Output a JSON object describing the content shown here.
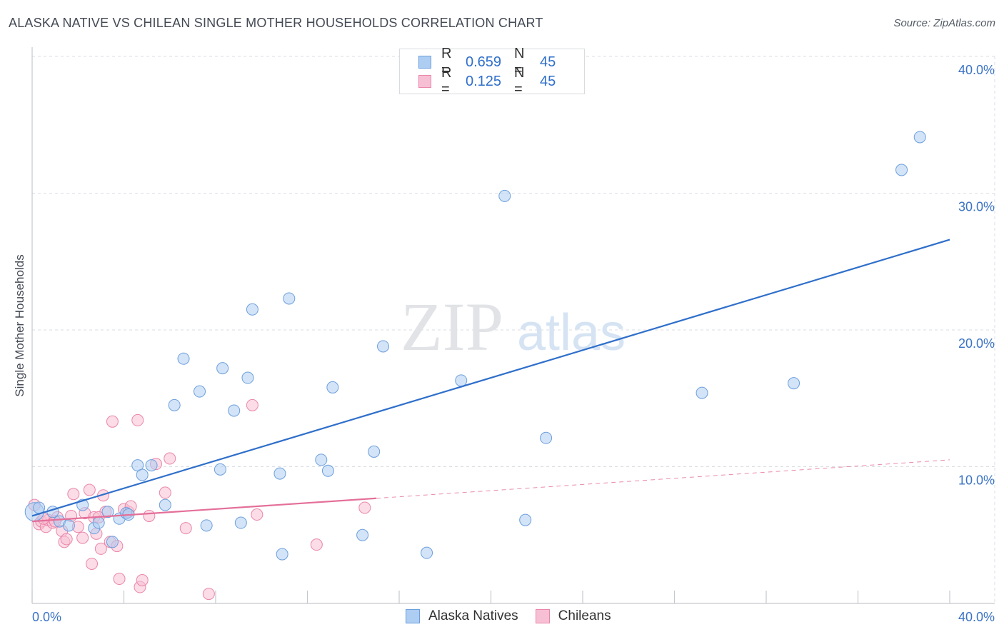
{
  "title": "ALASKA NATIVE VS CHILEAN SINGLE MOTHER HOUSEHOLDS CORRELATION CHART",
  "source": "Source: ZipAtlas.com",
  "watermark": {
    "zip": "ZIP",
    "atlas": "atlas"
  },
  "legend_top": [
    {
      "r_label": "R =",
      "r_value": "0.659",
      "n_label": "N =",
      "n_value": "45"
    },
    {
      "r_label": "R =",
      "r_value": "0.125",
      "n_label": "N =",
      "n_value": "45"
    }
  ],
  "legend_bottom": [
    "Alaska Natives",
    "Chileans"
  ],
  "colors": {
    "blue_fill": "#aecdf2",
    "blue_stroke": "#6c9fdc",
    "blue_line": "#2f6fca",
    "pink_fill": "#f7bfd3",
    "pink_stroke": "#ea86a9",
    "pink_line": "#e46f99",
    "tick_text": "#3b73c5",
    "grid": "#d9dde3"
  },
  "chart_data": {
    "type": "scatter",
    "title": "ALASKA NATIVE VS CHILEAN SINGLE MOTHER HOUSEHOLDS CORRELATION CHART",
    "xlabel": "",
    "ylabel": "Single Mother Households",
    "xlim": [
      0,
      40
    ],
    "ylim": [
      0,
      40
    ],
    "x_tick_labels": [
      "0.0%",
      "40.0%"
    ],
    "y_ticks": [
      10,
      20,
      30,
      40
    ],
    "y_tick_labels": [
      "10.0%",
      "20.0%",
      "30.0%",
      "40.0%"
    ],
    "series": [
      {
        "name": "Alaska Natives",
        "r": 0.659,
        "n": 45,
        "trend": {
          "x": [
            0,
            40
          ],
          "y": [
            6.4,
            26.6
          ],
          "solid_to": 40
        },
        "points": [
          [
            0.1,
            6.7
          ],
          [
            0.9,
            6.7
          ],
          [
            1.2,
            6.0
          ],
          [
            1.6,
            5.7
          ],
          [
            2.2,
            7.2
          ],
          [
            2.7,
            5.5
          ],
          [
            2.9,
            5.9
          ],
          [
            3.3,
            6.7
          ],
          [
            3.5,
            4.5
          ],
          [
            3.8,
            6.2
          ],
          [
            4.1,
            6.6
          ],
          [
            4.6,
            10.1
          ],
          [
            4.8,
            9.4
          ],
          [
            5.2,
            10.1
          ],
          [
            5.8,
            7.2
          ],
          [
            6.2,
            14.5
          ],
          [
            6.6,
            17.9
          ],
          [
            7.3,
            15.5
          ],
          [
            7.6,
            5.7
          ],
          [
            8.2,
            9.8
          ],
          [
            8.3,
            17.2
          ],
          [
            8.8,
            14.1
          ],
          [
            9.1,
            5.9
          ],
          [
            9.4,
            16.5
          ],
          [
            9.6,
            21.5
          ],
          [
            10.8,
            9.5
          ],
          [
            10.9,
            3.6
          ],
          [
            11.2,
            22.3
          ],
          [
            12.6,
            10.5
          ],
          [
            12.9,
            9.7
          ],
          [
            13.1,
            15.8
          ],
          [
            14.4,
            5.0
          ],
          [
            14.9,
            11.1
          ],
          [
            15.3,
            18.8
          ],
          [
            17.2,
            3.7
          ],
          [
            18.7,
            16.3
          ],
          [
            20.6,
            29.8
          ],
          [
            21.5,
            6.1
          ],
          [
            22.4,
            12.1
          ],
          [
            29.2,
            15.4
          ],
          [
            33.2,
            16.1
          ],
          [
            37.9,
            31.7
          ],
          [
            38.7,
            34.1
          ],
          [
            0.3,
            7.0
          ],
          [
            4.2,
            6.5
          ]
        ]
      },
      {
        "name": "Chileans",
        "r": 0.125,
        "n": 45,
        "trend": {
          "x": [
            0,
            40
          ],
          "y": [
            6.0,
            10.5
          ],
          "solid_to": 15.0
        },
        "points": [
          [
            0.1,
            7.2
          ],
          [
            0.3,
            5.8
          ],
          [
            0.4,
            6.0
          ],
          [
            0.6,
            5.6
          ],
          [
            0.7,
            6.1
          ],
          [
            0.9,
            5.9
          ],
          [
            1.1,
            6.3
          ],
          [
            1.3,
            5.3
          ],
          [
            1.4,
            4.5
          ],
          [
            1.5,
            4.7
          ],
          [
            1.7,
            6.4
          ],
          [
            1.8,
            8.0
          ],
          [
            2.0,
            5.6
          ],
          [
            2.2,
            4.8
          ],
          [
            2.3,
            6.6
          ],
          [
            2.5,
            8.3
          ],
          [
            2.6,
            2.9
          ],
          [
            2.7,
            6.3
          ],
          [
            2.8,
            5.1
          ],
          [
            3.0,
            4.0
          ],
          [
            3.1,
            7.9
          ],
          [
            3.2,
            6.7
          ],
          [
            3.4,
            4.5
          ],
          [
            3.5,
            13.3
          ],
          [
            3.7,
            4.2
          ],
          [
            3.8,
            1.8
          ],
          [
            4.0,
            6.9
          ],
          [
            4.2,
            6.7
          ],
          [
            4.3,
            7.1
          ],
          [
            4.6,
            13.4
          ],
          [
            4.7,
            1.2
          ],
          [
            4.8,
            1.7
          ],
          [
            5.1,
            6.4
          ],
          [
            5.4,
            10.2
          ],
          [
            5.8,
            8.1
          ],
          [
            6.0,
            10.6
          ],
          [
            6.7,
            5.5
          ],
          [
            7.7,
            0.7
          ],
          [
            9.6,
            14.5
          ],
          [
            9.8,
            6.5
          ],
          [
            12.4,
            4.3
          ],
          [
            14.5,
            7.0
          ],
          [
            0.5,
            6.2
          ],
          [
            1.0,
            6.0
          ],
          [
            2.9,
            6.3
          ]
        ]
      }
    ]
  }
}
